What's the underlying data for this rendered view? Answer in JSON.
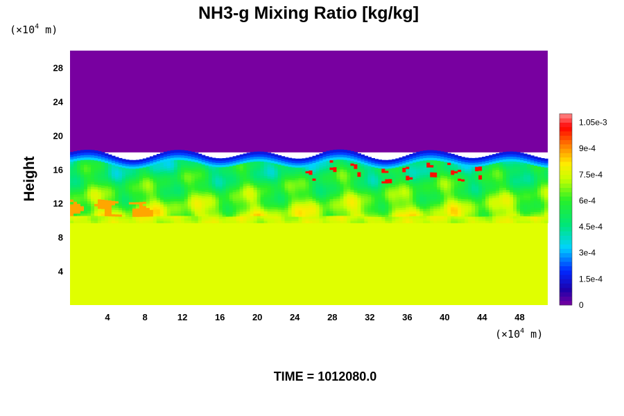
{
  "chart_data": {
    "type": "heatmap",
    "title": "NH3-g Mixing Ratio [kg/kg]",
    "xlabel": "",
    "ylabel": "Height",
    "x_units": "(×10",
    "x_units_exp": "4",
    "x_units_tail": " m)",
    "y_units": "(×10",
    "y_units_exp": "4",
    "y_units_tail": " m)",
    "xlim": [
      0,
      51
    ],
    "ylim": [
      0,
      30
    ],
    "x_ticks": [
      4,
      8,
      12,
      16,
      20,
      24,
      28,
      32,
      36,
      40,
      44,
      48
    ],
    "y_ticks": [
      4,
      8,
      12,
      16,
      20,
      24,
      28
    ],
    "colorbar": {
      "range": [
        0,
        0.0011
      ],
      "tick_values": [
        0,
        0.00015,
        0.0003,
        0.00045,
        0.0006,
        0.00075,
        0.0009,
        0.00105
      ],
      "tick_labels": [
        "0",
        "1.5e-4",
        "3e-4",
        "4.5e-4",
        "6e-4",
        "7.5e-4",
        "9e-4",
        "1.05e-3"
      ]
    },
    "field_description_levels": {
      "lower_layer_value": 0.00075,
      "upper_layer_value": 0,
      "mixing_layer_bottom": 10.5,
      "mixing_layer_top": 18
    }
  },
  "footer": {
    "time_label": "TIME = 1012080.0"
  }
}
